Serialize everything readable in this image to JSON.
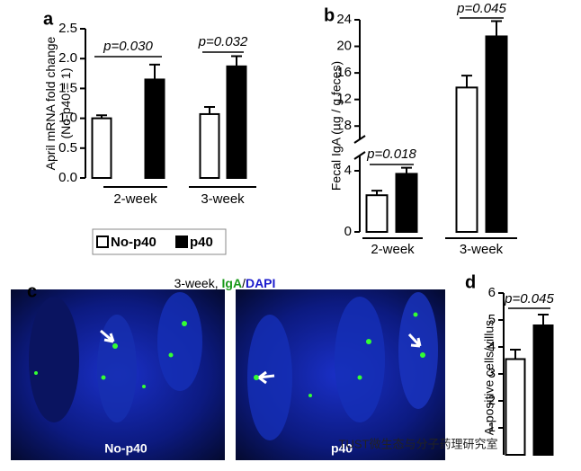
{
  "chart_data": [
    {
      "type": "bar",
      "panel": "a",
      "ylabel": [
        "April mRNA fold change",
        "(No-p40 = 1)"
      ],
      "categories": [
        "2-week",
        "3-week"
      ],
      "p_values": [
        "p=0.030",
        "p=0.032"
      ],
      "series": [
        {
          "name": "No-p40",
          "color": "#ffffff",
          "values": [
            1.0,
            1.07
          ],
          "errors": [
            0.05,
            0.12
          ]
        },
        {
          "name": "p40",
          "color": "#000000",
          "values": [
            1.65,
            1.87
          ],
          "errors": [
            0.25,
            0.17
          ]
        }
      ],
      "ylim": [
        0,
        2.5
      ],
      "yticks": [
        {
          "value": 0,
          "label": "0.0"
        },
        0.5,
        {
          "value": 1,
          "label": "1.0"
        },
        1.5,
        {
          "value": 2,
          "label": "2.0"
        },
        2.5
      ]
    },
    {
      "type": "bar",
      "panel": "b",
      "ylabel": [
        "Fecal IgA (µg / g feces)"
      ],
      "categories": [
        "2-week",
        "3-week"
      ],
      "p_values": [
        "p=0.018",
        "p=0.045"
      ],
      "series": [
        {
          "color": "#ffffff",
          "values": [
            2.4,
            13.8
          ],
          "errors": [
            0.3,
            1.8
          ]
        },
        {
          "color": "#000000",
          "values": [
            3.8,
            21.5
          ],
          "errors": [
            0.4,
            2.3
          ]
        }
      ],
      "ylim": [
        0,
        24
      ],
      "axis_break": [
        5,
        6
      ],
      "yticks": [
        0,
        4,
        8,
        12,
        16,
        20,
        24
      ]
    },
    {
      "type": "bar",
      "panel": "d",
      "ylabel": [
        "A-positive cells/villus"
      ],
      "p_values": [
        "p=0.045"
      ],
      "series": [
        {
          "color": "#ffffff",
          "values": [
            3.55
          ],
          "errors": [
            0.35
          ]
        },
        {
          "color": "#000000",
          "values": [
            4.8
          ],
          "errors": [
            0.4
          ]
        }
      ],
      "ylim": [
        0,
        6
      ],
      "yticks": [
        1,
        2,
        3,
        4,
        5,
        6
      ]
    }
  ],
  "image_panel": {
    "panel": "c",
    "title_parts": [
      {
        "text": "3-week, ",
        "color": "#000000"
      },
      {
        "text": "IgA",
        "color": "#1a9a1a"
      },
      {
        "text": "/",
        "color": "#000000"
      },
      {
        "text": "DAPI",
        "color": "#1a1acc"
      }
    ],
    "labels": [
      "No-p40",
      "p40"
    ]
  },
  "watermark": "TUST微生态与分子药理研究室"
}
